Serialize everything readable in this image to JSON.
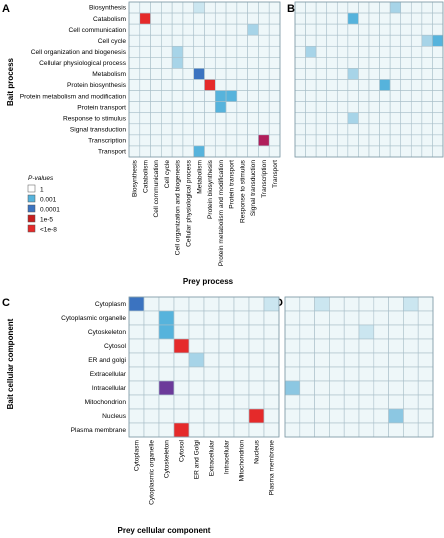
{
  "panel_labels": [
    "A",
    "B",
    "C",
    "D"
  ],
  "colors": {
    "grid": "#a9bfc9",
    "bg": "#eef7f9",
    "scale": {
      "1": "#eef7f9",
      "0.001": "#56b3dc",
      "0.0001": "#3b73c0",
      "1e-5": "#c81e1e",
      "<1e-8": "#e52a2a",
      "purple": "#6c3a9a"
    }
  },
  "legend": {
    "title": "P-values",
    "items": [
      {
        "label": "1",
        "color": "#ffffff"
      },
      {
        "label": "0.001",
        "color": "#56b3dc"
      },
      {
        "label": "0.0001",
        "color": "#3b73c0"
      },
      {
        "label": "1e-5",
        "color": "#c81e1e"
      },
      {
        "label": "<1e-8",
        "color": "#e52a2a"
      }
    ]
  },
  "chart_data": [
    {
      "type": "heatmap",
      "panel": "A",
      "ylabel": "Bait process",
      "xlabel": "Prey process",
      "rows": [
        "Biosynthesis",
        "Catabolism",
        "Cell communication",
        "Cell cycle",
        "Cell organization and biogenesis",
        "Cellular physiological process",
        "Metabolism",
        "Protein biosynthesis",
        "Protein metabolism and modification",
        "Protein transport",
        "Response to stimulus",
        "Signal transduction",
        "Transcription",
        "Transport"
      ],
      "columns": [
        "Biosynthesis",
        "Catabolism",
        "Cell communication",
        "Cell cycle",
        "Cell organization and biogenesis",
        "Cellular physiological process",
        "Metabolism",
        "Protein biosynthesis",
        "Protein metabolism and modification",
        "Protein transport",
        "Response to stimulus",
        "Signal transduction",
        "Transcription",
        "Transport"
      ],
      "highlights": [
        {
          "row": 1,
          "col": 1,
          "color": "#e52a2a"
        },
        {
          "row": 6,
          "col": 6,
          "color": "#3b73c0"
        },
        {
          "row": 7,
          "col": 7,
          "color": "#e52a2a"
        },
        {
          "row": 8,
          "col": 8,
          "color": "#56b3dc"
        },
        {
          "row": 8,
          "col": 9,
          "color": "#56b3dc"
        },
        {
          "row": 9,
          "col": 8,
          "color": "#56b3dc"
        },
        {
          "row": 12,
          "col": 12,
          "color": "#b01e5a"
        },
        {
          "row": 13,
          "col": 6,
          "color": "#56b3dc"
        },
        {
          "row": 2,
          "col": 11,
          "color": "#a7d4e8"
        },
        {
          "row": 4,
          "col": 4,
          "color": "#a7d4e8"
        },
        {
          "row": 5,
          "col": 4,
          "color": "#a7d4e8"
        },
        {
          "row": 0,
          "col": 6,
          "color": "#cbe6f0"
        }
      ]
    },
    {
      "type": "heatmap",
      "panel": "B",
      "rows": 14,
      "columns": 14,
      "highlights": [
        {
          "row": 1,
          "col": 5,
          "color": "#56b3dc"
        },
        {
          "row": 3,
          "col": 13,
          "color": "#56b3dc"
        },
        {
          "row": 7,
          "col": 8,
          "color": "#56b3dc"
        },
        {
          "row": 0,
          "col": 9,
          "color": "#a7d4e8"
        },
        {
          "row": 4,
          "col": 1,
          "color": "#a7d4e8"
        },
        {
          "row": 6,
          "col": 5,
          "color": "#a7d4e8"
        },
        {
          "row": 10,
          "col": 5,
          "color": "#a7d4e8"
        },
        {
          "row": 3,
          "col": 12,
          "color": "#a7d4e8"
        }
      ]
    },
    {
      "type": "heatmap",
      "panel": "C",
      "ylabel": "Bait cellular component",
      "xlabel": "Prey cellular component",
      "rows": [
        "Cytoplasm",
        "Cytoplasmic organelle",
        "Cytoskeleton",
        "Cytosol",
        "ER and golgi",
        "Extracellular",
        "Intracellular",
        "Mitochondrion",
        "Nucleus",
        "Plasma membrane"
      ],
      "columns": [
        "Cytoplasm",
        "Cytoplasmic organelle",
        "Cytoskeleton",
        "Cytosol",
        "ER and Golgi",
        "Extracellular",
        "Intracellular",
        "Mitochondrion",
        "Nucleus",
        "Plasma membrane"
      ],
      "highlights": [
        {
          "row": 0,
          "col": 0,
          "color": "#3b73c0"
        },
        {
          "row": 1,
          "col": 2,
          "color": "#56b3dc"
        },
        {
          "row": 2,
          "col": 2,
          "color": "#56b3dc"
        },
        {
          "row": 3,
          "col": 3,
          "color": "#e52a2a"
        },
        {
          "row": 4,
          "col": 4,
          "color": "#a7d4e8"
        },
        {
          "row": 6,
          "col": 2,
          "color": "#6c3a9a"
        },
        {
          "row": 8,
          "col": 8,
          "color": "#e52a2a"
        },
        {
          "row": 9,
          "col": 3,
          "color": "#e52a2a"
        },
        {
          "row": 0,
          "col": 9,
          "color": "#cbe6f0"
        }
      ]
    },
    {
      "type": "heatmap",
      "panel": "D",
      "rows": 10,
      "columns": 10,
      "highlights": [
        {
          "row": 6,
          "col": 0,
          "color": "#8cc7e2"
        },
        {
          "row": 8,
          "col": 7,
          "color": "#8cc7e2"
        },
        {
          "row": 0,
          "col": 2,
          "color": "#cbe6f0"
        },
        {
          "row": 0,
          "col": 8,
          "color": "#cbe6f0"
        },
        {
          "row": 2,
          "col": 5,
          "color": "#cbe6f0"
        }
      ]
    }
  ]
}
